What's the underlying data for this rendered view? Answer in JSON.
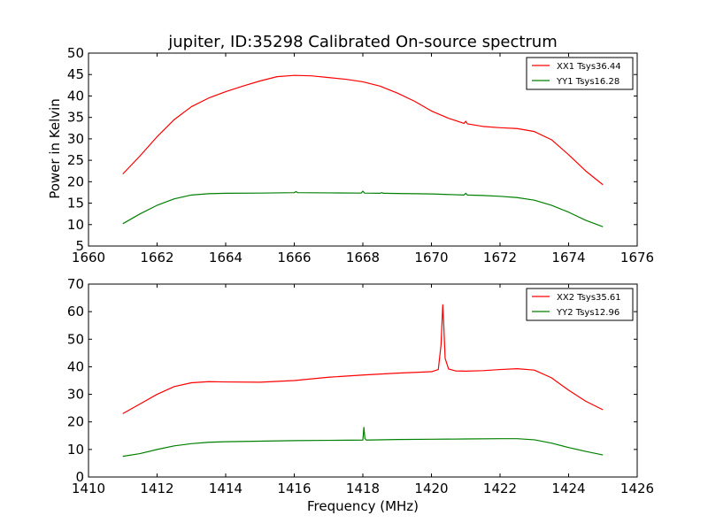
{
  "chart_data": [
    {
      "type": "line",
      "title": "jupiter, ID:35298 Calibrated On-source spectrum",
      "xlabel": "",
      "ylabel": "Power in Kelvin",
      "xlim": [
        1660,
        1676
      ],
      "ylim": [
        5,
        50
      ],
      "xticks": [
        1660,
        1662,
        1664,
        1666,
        1668,
        1670,
        1672,
        1674,
        1676
      ],
      "yticks": [
        5,
        10,
        15,
        20,
        25,
        30,
        35,
        40,
        45,
        50
      ],
      "legend_position": "top-right",
      "series": [
        {
          "name": "XX1 Tsys36.44",
          "color": "#ff0000",
          "x": [
            1661.0,
            1661.5,
            1662.0,
            1662.5,
            1663.0,
            1663.5,
            1664.0,
            1664.5,
            1665.0,
            1665.5,
            1666.0,
            1666.5,
            1667.0,
            1667.5,
            1668.0,
            1668.5,
            1669.0,
            1669.5,
            1670.0,
            1670.5,
            1670.95,
            1671.0,
            1671.05,
            1671.5,
            1672.0,
            1672.5,
            1673.0,
            1673.5,
            1674.0,
            1674.5,
            1675.0
          ],
          "y": [
            21.8,
            26.0,
            30.5,
            34.5,
            37.5,
            39.5,
            41.0,
            42.3,
            43.5,
            44.5,
            44.8,
            44.7,
            44.3,
            43.9,
            43.3,
            42.3,
            40.7,
            38.8,
            36.5,
            34.8,
            33.6,
            34.1,
            33.5,
            32.9,
            32.6,
            32.4,
            31.7,
            29.8,
            26.3,
            22.5,
            19.3
          ]
        },
        {
          "name": "YY1 Tsys16.28",
          "color": "#008000",
          "x": [
            1661.0,
            1661.5,
            1662.0,
            1662.5,
            1663.0,
            1663.5,
            1664.0,
            1665.0,
            1666.0,
            1666.05,
            1666.1,
            1667.0,
            1667.95,
            1668.0,
            1668.05,
            1668.5,
            1668.55,
            1668.6,
            1669.0,
            1670.0,
            1670.95,
            1671.0,
            1671.05,
            1671.5,
            1672.0,
            1672.5,
            1673.0,
            1673.5,
            1674.0,
            1674.5,
            1675.0
          ],
          "y": [
            10.2,
            12.5,
            14.5,
            16.0,
            16.9,
            17.2,
            17.3,
            17.35,
            17.45,
            17.7,
            17.45,
            17.4,
            17.35,
            17.8,
            17.35,
            17.3,
            17.45,
            17.3,
            17.25,
            17.15,
            16.9,
            17.3,
            16.9,
            16.8,
            16.6,
            16.3,
            15.7,
            14.5,
            12.9,
            11.0,
            9.5
          ]
        }
      ]
    },
    {
      "type": "line",
      "title": "",
      "xlabel": "Frequency (MHz)",
      "ylabel": "",
      "xlim": [
        1410,
        1426
      ],
      "ylim": [
        0,
        70
      ],
      "xticks": [
        1410,
        1412,
        1414,
        1416,
        1418,
        1420,
        1422,
        1424,
        1426
      ],
      "yticks": [
        0,
        10,
        20,
        30,
        40,
        50,
        60,
        70
      ],
      "legend_position": "top-right",
      "series": [
        {
          "name": "XX2 Tsys35.61",
          "color": "#ff0000",
          "x": [
            1411.0,
            1411.5,
            1412.0,
            1412.5,
            1413.0,
            1413.5,
            1414.0,
            1415.0,
            1416.0,
            1417.0,
            1418.0,
            1419.0,
            1420.0,
            1420.2,
            1420.28,
            1420.33,
            1420.36,
            1420.4,
            1420.5,
            1420.7,
            1421.0,
            1421.5,
            1422.0,
            1422.5,
            1423.0,
            1423.5,
            1424.0,
            1424.5,
            1425.0
          ],
          "y": [
            23.0,
            26.5,
            30.0,
            32.8,
            34.2,
            34.6,
            34.5,
            34.4,
            35.0,
            36.2,
            37.0,
            37.7,
            38.2,
            39.0,
            48.0,
            62.5,
            55.0,
            43.0,
            39.2,
            38.5,
            38.4,
            38.6,
            39.0,
            39.3,
            38.8,
            36.0,
            31.5,
            27.5,
            24.4
          ]
        },
        {
          "name": "YY2 Tsys12.96",
          "color": "#008000",
          "x": [
            1411.0,
            1411.5,
            1412.0,
            1412.5,
            1413.0,
            1413.5,
            1414.0,
            1415.0,
            1416.0,
            1417.0,
            1418.0,
            1418.03,
            1418.06,
            1418.1,
            1419.0,
            1420.0,
            1421.0,
            1422.0,
            1422.5,
            1423.0,
            1423.5,
            1424.0,
            1424.5,
            1425.0
          ],
          "y": [
            7.5,
            8.5,
            10.0,
            11.3,
            12.1,
            12.6,
            12.8,
            13.0,
            13.2,
            13.3,
            13.4,
            18.0,
            14.0,
            13.4,
            13.6,
            13.7,
            13.8,
            13.9,
            13.9,
            13.5,
            12.3,
            10.7,
            9.3,
            8.0
          ]
        }
      ]
    }
  ]
}
